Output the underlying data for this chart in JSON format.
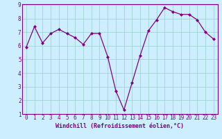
{
  "x": [
    0,
    1,
    2,
    3,
    4,
    5,
    6,
    7,
    8,
    9,
    10,
    11,
    12,
    13,
    14,
    15,
    16,
    17,
    18,
    19,
    20,
    21,
    22,
    23
  ],
  "y": [
    5.9,
    7.4,
    6.2,
    6.9,
    7.2,
    6.9,
    6.6,
    6.1,
    6.9,
    6.9,
    5.2,
    2.7,
    1.3,
    3.3,
    5.3,
    7.1,
    7.9,
    8.8,
    8.5,
    8.3,
    8.3,
    7.9,
    7.0,
    6.5
  ],
  "line_color": "#800080",
  "marker": "D",
  "marker_size": 2.0,
  "bg_color": "#cceeff",
  "grid_color": "#99cccc",
  "xlabel": "Windchill (Refroidissement éolien,°C)",
  "xlabel_color": "#800080",
  "tick_color": "#800080",
  "spine_color": "#800080",
  "ylim": [
    1,
    9
  ],
  "xlim": [
    -0.5,
    23.5
  ],
  "yticks": [
    1,
    2,
    3,
    4,
    5,
    6,
    7,
    8,
    9
  ],
  "xticks": [
    0,
    1,
    2,
    3,
    4,
    5,
    6,
    7,
    8,
    9,
    10,
    11,
    12,
    13,
    14,
    15,
    16,
    17,
    18,
    19,
    20,
    21,
    22,
    23
  ],
  "xtick_labels": [
    "0",
    "1",
    "2",
    "3",
    "4",
    "5",
    "6",
    "7",
    "8",
    "9",
    "10",
    "11",
    "12",
    "13",
    "14",
    "15",
    "16",
    "17",
    "18",
    "19",
    "20",
    "21",
    "22",
    "23"
  ],
  "ytick_labels": [
    "1",
    "2",
    "3",
    "4",
    "5",
    "6",
    "7",
    "8",
    "9"
  ],
  "tick_fontsize": 5.5,
  "xlabel_fontsize": 6.0,
  "linewidth": 0.9
}
